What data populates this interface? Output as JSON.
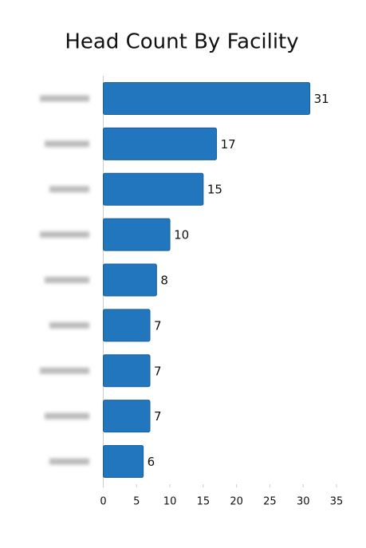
{
  "chart_data": {
    "type": "barh",
    "title": "Head Count By Facility",
    "categories": [
      null,
      null,
      null,
      null,
      null,
      null,
      null,
      null,
      null
    ],
    "values": [
      31,
      17,
      15,
      10,
      8,
      7,
      7,
      7,
      6
    ],
    "color": "#2176bd",
    "xlim": [
      0,
      35
    ],
    "xticks": [
      0,
      5,
      10,
      15,
      20,
      25,
      30,
      35
    ]
  }
}
